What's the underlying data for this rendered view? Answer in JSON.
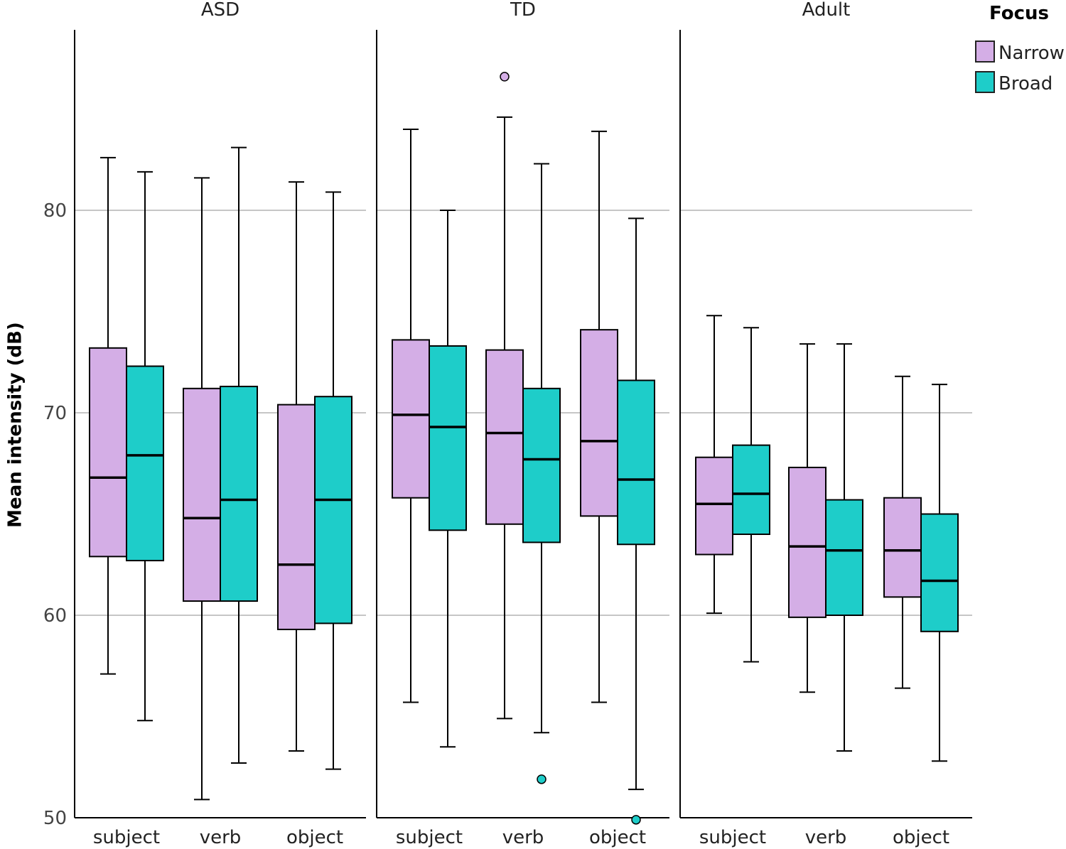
{
  "chart_data": {
    "type": "boxplot",
    "ylabel": "Mean intensity (dB)",
    "ylim": [
      50,
      89
    ],
    "yticks": [
      50,
      60,
      70,
      80
    ],
    "grid": true,
    "categories": [
      "subject",
      "verb",
      "object"
    ],
    "legend": {
      "title": "Focus",
      "position": "top-right",
      "entries": [
        {
          "name": "Narrow",
          "color": "#d4aee6"
        },
        {
          "name": "Broad",
          "color": "#1ecdc9"
        }
      ]
    },
    "panels": [
      {
        "title": "ASD",
        "groups": [
          {
            "category": "subject",
            "series": "Narrow",
            "whisker_low": 57.1,
            "q1": 62.9,
            "median": 66.8,
            "q3": 73.2,
            "whisker_high": 82.6,
            "outliers": []
          },
          {
            "category": "subject",
            "series": "Broad",
            "whisker_low": 54.8,
            "q1": 62.7,
            "median": 67.9,
            "q3": 72.3,
            "whisker_high": 81.9,
            "outliers": []
          },
          {
            "category": "verb",
            "series": "Narrow",
            "whisker_low": 50.9,
            "q1": 60.7,
            "median": 64.8,
            "q3": 71.2,
            "whisker_high": 81.6,
            "outliers": []
          },
          {
            "category": "verb",
            "series": "Broad",
            "whisker_low": 52.7,
            "q1": 60.7,
            "median": 65.7,
            "q3": 71.3,
            "whisker_high": 83.1,
            "outliers": []
          },
          {
            "category": "object",
            "series": "Narrow",
            "whisker_low": 53.3,
            "q1": 59.3,
            "median": 62.5,
            "q3": 70.4,
            "whisker_high": 81.4,
            "outliers": []
          },
          {
            "category": "object",
            "series": "Broad",
            "whisker_low": 52.4,
            "q1": 59.6,
            "median": 65.7,
            "q3": 70.8,
            "whisker_high": 80.9,
            "outliers": []
          }
        ]
      },
      {
        "title": "TD",
        "groups": [
          {
            "category": "subject",
            "series": "Narrow",
            "whisker_low": 55.7,
            "q1": 65.8,
            "median": 69.9,
            "q3": 73.6,
            "whisker_high": 84.0,
            "outliers": []
          },
          {
            "category": "subject",
            "series": "Broad",
            "whisker_low": 53.5,
            "q1": 64.2,
            "median": 69.3,
            "q3": 73.3,
            "whisker_high": 80.0,
            "outliers": []
          },
          {
            "category": "verb",
            "series": "Narrow",
            "whisker_low": 54.9,
            "q1": 64.5,
            "median": 69.0,
            "q3": 73.1,
            "whisker_high": 84.6,
            "outliers": [
              86.6
            ]
          },
          {
            "category": "verb",
            "series": "Broad",
            "whisker_low": 54.2,
            "q1": 63.6,
            "median": 67.7,
            "q3": 71.2,
            "whisker_high": 82.3,
            "outliers": [
              51.9
            ]
          },
          {
            "category": "object",
            "series": "Narrow",
            "whisker_low": 55.7,
            "q1": 64.9,
            "median": 68.6,
            "q3": 74.1,
            "whisker_high": 83.9,
            "outliers": []
          },
          {
            "category": "object",
            "series": "Broad",
            "whisker_low": 51.4,
            "q1": 63.5,
            "median": 66.7,
            "q3": 71.6,
            "whisker_high": 79.6,
            "outliers": [
              49.9
            ]
          }
        ]
      },
      {
        "title": "Adult",
        "groups": [
          {
            "category": "subject",
            "series": "Narrow",
            "whisker_low": 60.1,
            "q1": 63.0,
            "median": 65.5,
            "q3": 67.8,
            "whisker_high": 74.8,
            "outliers": []
          },
          {
            "category": "subject",
            "series": "Broad",
            "whisker_low": 57.7,
            "q1": 64.0,
            "median": 66.0,
            "q3": 68.4,
            "whisker_high": 74.2,
            "outliers": []
          },
          {
            "category": "verb",
            "series": "Narrow",
            "whisker_low": 56.2,
            "q1": 59.9,
            "median": 63.4,
            "q3": 67.3,
            "whisker_high": 73.4,
            "outliers": []
          },
          {
            "category": "verb",
            "series": "Broad",
            "whisker_low": 53.3,
            "q1": 60.0,
            "median": 63.2,
            "q3": 65.7,
            "whisker_high": 73.4,
            "outliers": []
          },
          {
            "category": "object",
            "series": "Narrow",
            "whisker_low": 56.4,
            "q1": 60.9,
            "median": 63.2,
            "q3": 65.8,
            "whisker_high": 71.8,
            "outliers": []
          },
          {
            "category": "object",
            "series": "Broad",
            "whisker_low": 52.8,
            "q1": 59.2,
            "median": 61.7,
            "q3": 65.0,
            "whisker_high": 71.4,
            "outliers": []
          }
        ]
      }
    ]
  }
}
